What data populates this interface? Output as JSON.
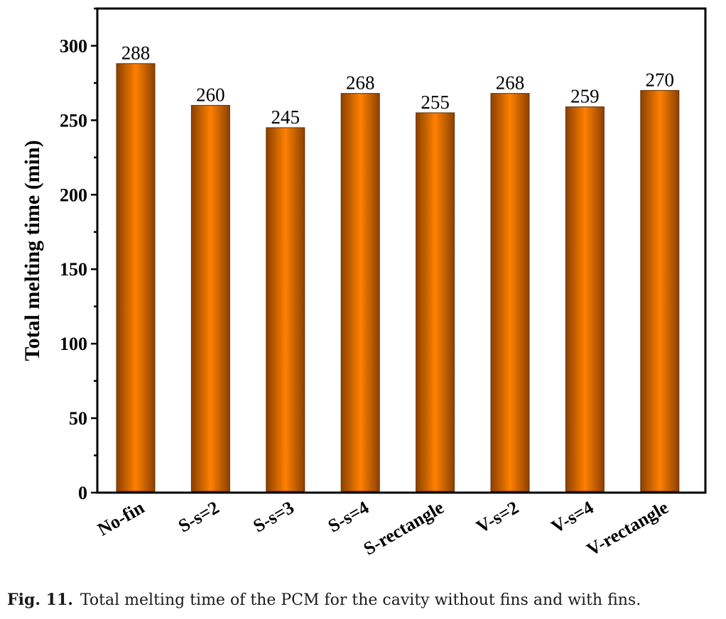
{
  "chart_data": {
    "type": "bar",
    "title": "",
    "xlabel": "",
    "ylabel": "Total melting time (min)",
    "ylim": [
      0,
      325
    ],
    "yticks": [
      0,
      50,
      100,
      150,
      200,
      250,
      300
    ],
    "categories": [
      "No-fin",
      "S-s=2",
      "S-s=3",
      "S-s=4",
      "S-rectangle",
      "V-s=2",
      "V-s=4",
      "V-rectangle"
    ],
    "values": [
      288,
      260,
      245,
      268,
      255,
      268,
      259,
      270
    ],
    "data_labels": [
      "288",
      "260",
      "245",
      "268",
      "255",
      "268",
      "259",
      "270"
    ],
    "bar_color_center": "#FF8000",
    "bar_color_edge": "#8B4000",
    "grid": false,
    "legend": "none"
  },
  "caption": {
    "label": "Fig. 11.",
    "text": "Total melting time of the PCM for the cavity without fins and with fins."
  }
}
